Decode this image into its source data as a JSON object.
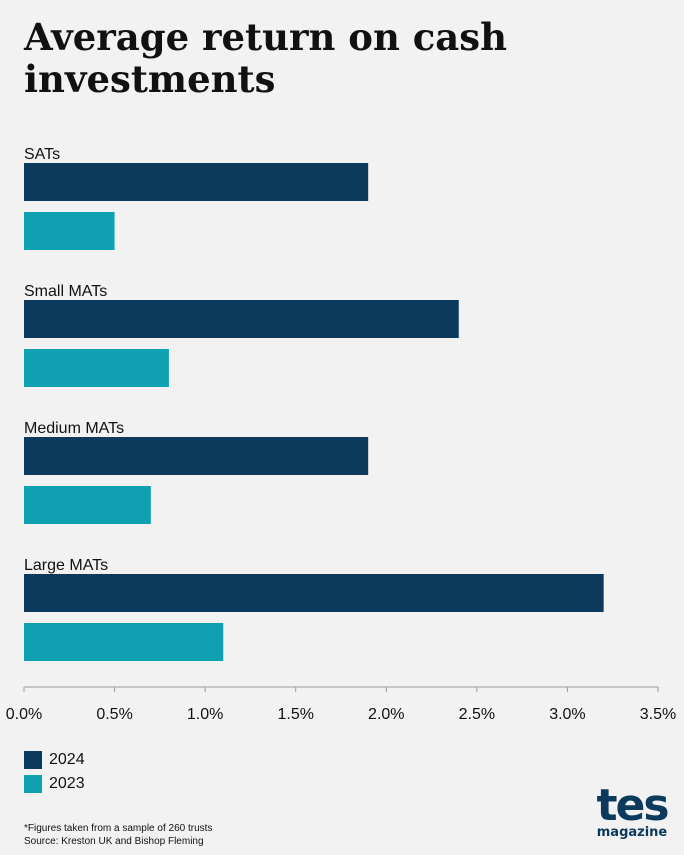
{
  "title": "Average return on cash investments",
  "chart_data": {
    "type": "bar",
    "orientation": "horizontal",
    "categories": [
      "SATs",
      "Small MATs",
      "Medium MATs",
      "Large MATs"
    ],
    "series": [
      {
        "name": "2024",
        "values": [
          1.9,
          2.4,
          1.9,
          3.2
        ],
        "color": "#0b3a5c"
      },
      {
        "name": "2023",
        "values": [
          0.5,
          0.8,
          0.7,
          1.1
        ],
        "color": "#0fa1b1"
      }
    ],
    "xlim": [
      0,
      3.5
    ],
    "xticks": [
      "0.0%",
      "0.5%",
      "1.0%",
      "1.5%",
      "2.0%",
      "2.5%",
      "3.0%",
      "3.5%"
    ],
    "unit": "%",
    "grid": false,
    "legend": "bottom-left"
  },
  "legend": [
    {
      "label": "2024",
      "color": "#0b3a5c"
    },
    {
      "label": "2023",
      "color": "#0fa1b1"
    }
  ],
  "notes": {
    "footnote": "*Figures taken from a sample of 260 trusts",
    "source": "Source: Kreston UK and Bishop Fleming"
  },
  "logo": {
    "main": "tes",
    "sub": "magazine"
  }
}
